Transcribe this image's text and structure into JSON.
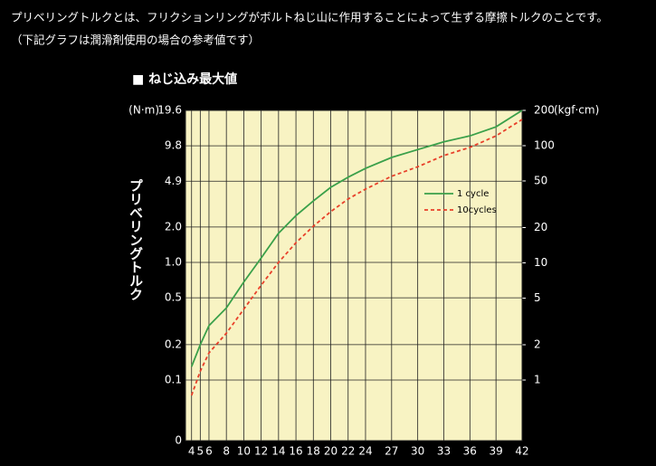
{
  "header": {
    "lines": [
      "プリベリングトルクとは、フリクションリングがボルトねじ山に作用することによって生ずる摩擦トルクのことです。",
      "（下記グラフは潤滑剤使用の場合の参考値です）"
    ]
  },
  "chart_data": {
    "type": "line",
    "title": "■ ねじ込み最大値",
    "y_label": "プリベリングトルク",
    "y_unit": "(N·m)",
    "y2_unit": "(kgf·cm)",
    "x": [
      4,
      5,
      6,
      8,
      10,
      12,
      14,
      16,
      18,
      20,
      22,
      24,
      27,
      30,
      33,
      36,
      39,
      42
    ],
    "series": [
      {
        "name": "1 cycle",
        "color": "#3aa04a",
        "dash": false,
        "values": [
          0.13,
          0.2,
          0.29,
          0.41,
          0.68,
          1.09,
          1.77,
          2.5,
          3.33,
          4.35,
          5.3,
          6.3,
          7.8,
          9.1,
          10.6,
          11.9,
          14.2,
          19.6
        ]
      },
      {
        "name": "10cycles",
        "color": "#e8402a",
        "dash": true,
        "values": [
          0.074,
          0.119,
          0.17,
          0.25,
          0.4,
          0.64,
          1.0,
          1.47,
          2.03,
          2.7,
          3.46,
          4.2,
          5.4,
          6.5,
          8.1,
          9.5,
          11.9,
          16.4
        ]
      }
    ],
    "xlim": [
      3.3,
      42
    ],
    "xticks": [
      4,
      5,
      6,
      8,
      10,
      12,
      14,
      16,
      18,
      20,
      22,
      24,
      27,
      30,
      33,
      36,
      39,
      42
    ],
    "ylim": [
      0,
      19.6
    ],
    "yticks": [
      0,
      0.1,
      0.2,
      0.5,
      {
        "value": 1,
        "label": "1.0"
      },
      {
        "value": 2,
        "label": "2.0"
      },
      4.9,
      9.8,
      19.6
    ],
    "y2lim": [
      0,
      200
    ],
    "y2ticks": [
      1,
      2,
      5,
      10,
      20,
      50,
      100,
      200
    ],
    "yscale": "log",
    "grid": true,
    "legend": "upper right",
    "background": "#f8f3c3"
  }
}
